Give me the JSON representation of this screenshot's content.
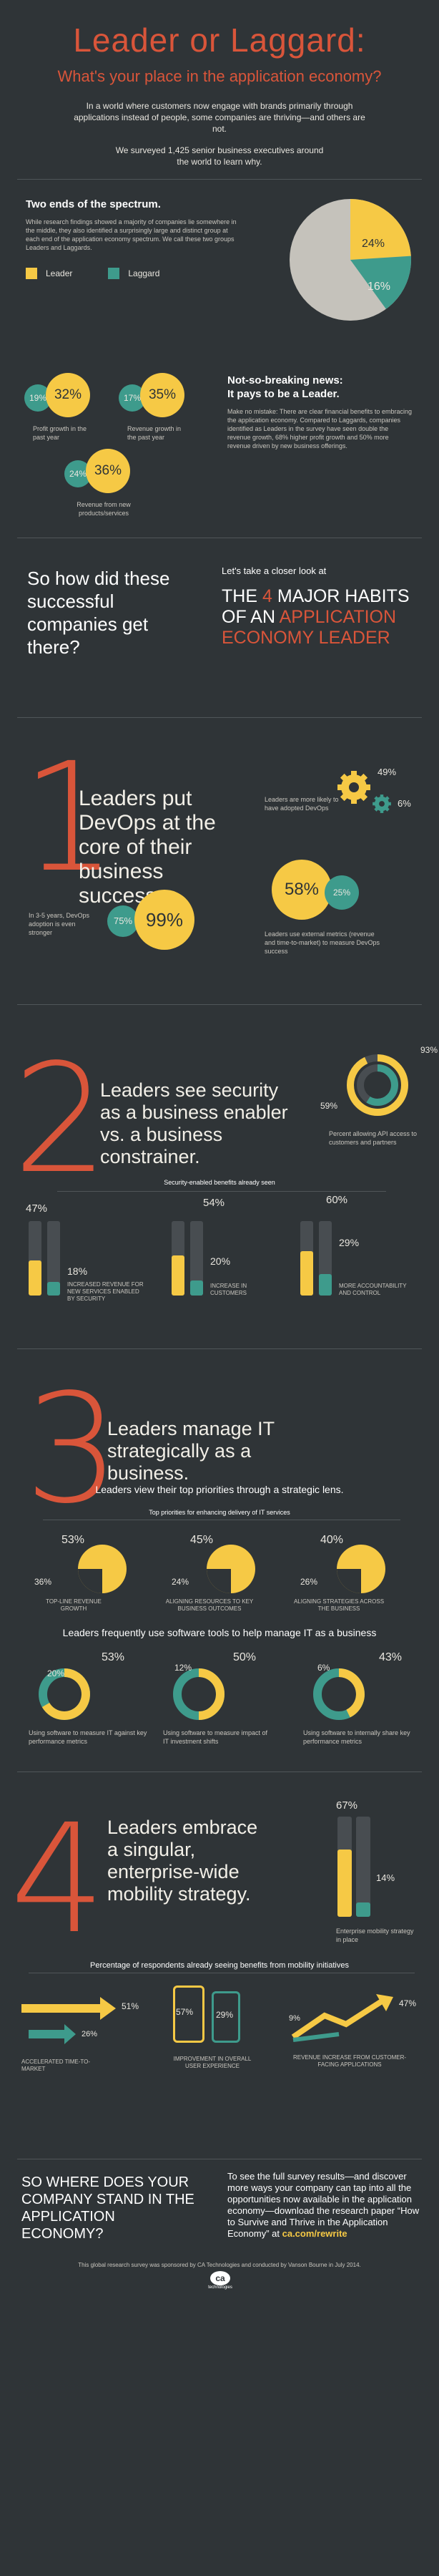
{
  "header": {
    "title": "Leader or Laggard:",
    "subtitle": "What's your place in the application economy?",
    "intro": "In a world where customers now engage with brands primarily through applications instead of people, some companies are thriving—and others are not.",
    "survey": "We surveyed 1,425 senior business executives around the world to learn why."
  },
  "spectrum": {
    "title": "Two ends of the spectrum.",
    "body": "While research findings showed a majority of companies lie somewhere in the middle, they also identified a surprisingly large and distinct group at each end of the application economy spectrum. We call these two groups Leaders and Laggards.",
    "legend_leader": "Leader",
    "legend_laggard": "Laggard",
    "pie_leader": "24%",
    "pie_laggard": "16%",
    "pie_leader_value": 24,
    "pie_laggard_value": 16
  },
  "news": {
    "title": "Not-so-breaking news:",
    "title2": "It pays to be a Leader.",
    "body": "Make no mistake: There are clear financial benefits to embracing the application economy. Compared to Laggards, companies identified as Leaders in the survey have seen double the revenue growth, 68% higher profit growth and 50% more revenue driven by new business offerings.",
    "stats": [
      {
        "lag": "19%",
        "lead": "32%",
        "label": "Profit growth in the past year"
      },
      {
        "lag": "17%",
        "lead": "35%",
        "label": "Revenue growth in the past year"
      },
      {
        "lag": "24%",
        "lead": "36%",
        "label": "Revenue from new products/services"
      }
    ]
  },
  "how": {
    "question": "So how did these successful companies get there?",
    "lead_in": "Let's take a closer look at",
    "the": "THE",
    "four": "4",
    "major": "MAJOR HABITS",
    "of_an": "OF AN",
    "app": "APPLICATION",
    "eco": "ECONOMY LEADER"
  },
  "habit1": {
    "num": "1",
    "title": "Leaders put DevOps at the core of their business success.",
    "note1": "Leaders are more likely to have adopted DevOps",
    "lead1": "49%",
    "lag1": "6%",
    "note2": "In 3-5 years, DevOps adoption is even stronger",
    "lag2": "75%",
    "lead2": "99%",
    "note3": "Leaders use external metrics (revenue and time-to-market) to measure DevOps success",
    "lead3": "58%",
    "lag3": "25%"
  },
  "habit2": {
    "num": "2",
    "title": "Leaders see security as a business enabler vs. a business constrainer.",
    "lead": "93%",
    "lag": "59%",
    "note": "Percent allowing API access to customers and partners",
    "bars_title": "Security-enabled benefits already seen",
    "bars": [
      {
        "lead": "47%",
        "lag": "18%",
        "lead_v": 47,
        "lag_v": 18,
        "label": "INCREASED REVENUE FOR NEW SERVICES ENABLED BY SECURITY"
      },
      {
        "lead": "54%",
        "lag": "20%",
        "lead_v": 54,
        "lag_v": 20,
        "label": "INCREASE IN CUSTOMERS"
      },
      {
        "lead": "60%",
        "lag": "29%",
        "lead_v": 60,
        "lag_v": 29,
        "label": "MORE ACCOUNTABILITY AND CONTROL"
      }
    ]
  },
  "habit3": {
    "num": "3",
    "title": "Leaders manage IT strategically as a business.",
    "lens": "Leaders view their top priorities through a strategic lens.",
    "prio_title": "Top priorities for enhancing delivery of IT services",
    "prios": [
      {
        "lead": "53%",
        "lag": "36%",
        "label": "TOP-LINE REVENUE GROWTH"
      },
      {
        "lead": "45%",
        "lag": "24%",
        "label": "ALIGNING RESOURCES TO KEY BUSINESS OUTCOMES"
      },
      {
        "lead": "40%",
        "lag": "26%",
        "label": "ALIGNING STRATEGIES ACROSS THE BUSINESS"
      }
    ],
    "tools_title": "Leaders frequently use software tools to help manage IT as a business",
    "tools": [
      {
        "lag": "20%",
        "lead": "53%",
        "label": "Using software to measure IT against key performance metrics"
      },
      {
        "lag": "12%",
        "lead": "50%",
        "label": "Using software to measure impact of IT investment shifts"
      },
      {
        "lag": "6%",
        "lead": "43%",
        "label": "Using software to internally share key performance metrics"
      }
    ]
  },
  "habit4": {
    "num": "4",
    "title": "Leaders embrace a singular, enterprise-wide mobility strategy.",
    "lead": "67%",
    "lag": "14%",
    "lead_v": 67,
    "lag_v": 14,
    "note": "Enterprise mobility strategy in place",
    "benefits_title": "Percentage of respondents already seeing benefits from mobility initiatives",
    "benefits": [
      {
        "lead": "51%",
        "lag": "26%",
        "label": "ACCELERATED TIME-TO-MARKET"
      },
      {
        "lead": "57%",
        "lag": "29%",
        "label": "IMPROVEMENT IN OVERALL USER EXPERIENCE"
      },
      {
        "lead": "47%",
        "lag": "9%",
        "label": "REVENUE INCREASE FROM CUSTOMER-FACING APPLICATIONS"
      }
    ]
  },
  "footer": {
    "question": "SO WHERE DOES YOUR COMPANY STAND IN THE APPLICATION ECONOMY?",
    "cta": "To see the full survey results—and discover more ways your company can tap into all the opportunities now available in the application economy—download the research paper “How to Survive and Thrive in the Application Economy” at",
    "url": "ca.com/rewrite",
    "credit": "This global research survey was sponsored by CA Technologies and conducted by Vanson Bourne in July 2014.",
    "logo": "ca",
    "logo_sub": "technologies"
  },
  "colors": {
    "leader": "#f6c945",
    "laggard": "#3e9b8c",
    "accent": "#d9553a",
    "bg": "#2f3437"
  }
}
